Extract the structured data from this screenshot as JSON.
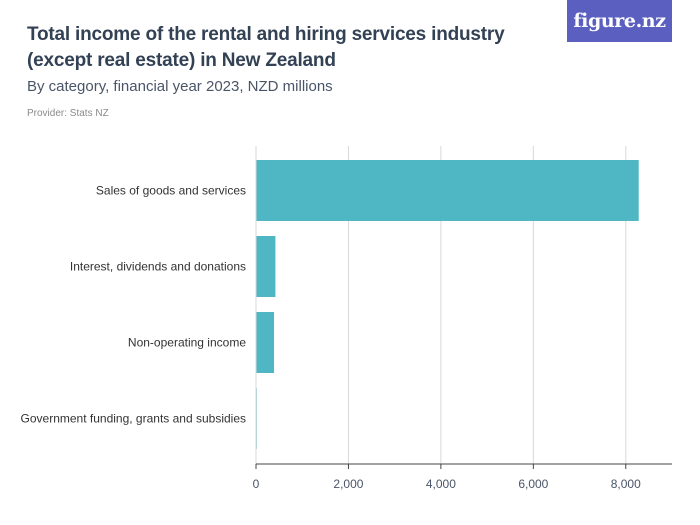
{
  "header": {
    "title": "Total income of the rental and hiring services industry (except real estate) in New Zealand",
    "subtitle": "By category, financial year 2023, NZD millions",
    "provider": "Provider: Stats NZ",
    "logo_text": "figure.nz"
  },
  "colors": {
    "bar": "#4fb6c4",
    "grid": "#d8d8d8",
    "axis": "#444444",
    "logo_bg": "#5b5fbf"
  },
  "chart_data": {
    "type": "bar",
    "orientation": "horizontal",
    "title": "Total income of the rental and hiring services industry (except real estate) in New Zealand",
    "subtitle": "By category, financial year 2023, NZD millions",
    "categories": [
      "Sales of goods and services",
      "Interest, dividends and donations",
      "Non-operating income",
      "Government funding, grants and subsidies"
    ],
    "values": [
      8280,
      420,
      390,
      10
    ],
    "xlim": [
      0,
      9000
    ],
    "x_ticks": [
      0,
      2000,
      4000,
      6000,
      8000
    ],
    "x_tick_labels": [
      "0",
      "2,000",
      "4,000",
      "6,000",
      "8,000"
    ],
    "grid": true
  }
}
